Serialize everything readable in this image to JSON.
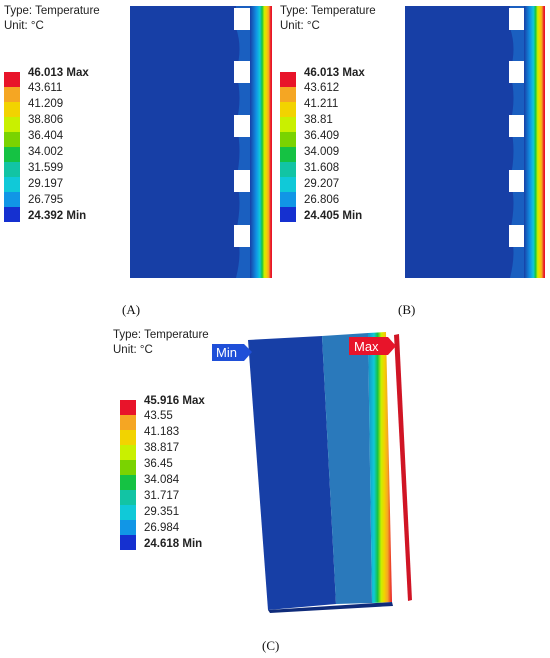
{
  "panels": [
    {
      "id": "A",
      "type_label": "Type: Temperature",
      "unit_label": "Unit: °C",
      "legend": [
        "46.013 Max",
        "43.611",
        "41.209",
        "38.806",
        "36.404",
        "34.002",
        "31.599",
        "29.197",
        "26.795",
        "24.392 Min"
      ],
      "caption": "(A)"
    },
    {
      "id": "B",
      "type_label": "Type: Temperature",
      "unit_label": "Unit: °C",
      "legend": [
        "46.013 Max",
        "43.612",
        "41.211",
        "38.81",
        "36.409",
        "34.009",
        "31.608",
        "29.207",
        "26.806",
        "24.405 Min"
      ],
      "caption": "(B)"
    },
    {
      "id": "C",
      "type_label": "Type: Temperature",
      "unit_label": "Unit: °C",
      "legend": [
        "45.916 Max",
        "43.55",
        "41.183",
        "38.817",
        "36.45",
        "34.084",
        "31.717",
        "29.351",
        "26.984",
        "24.618 Min"
      ],
      "caption": "(C)",
      "min_tag": "Min",
      "max_tag": "Max"
    }
  ],
  "colors": {
    "scale": [
      "#e8142a",
      "#f5a623",
      "#f2d300",
      "#c9f000",
      "#7ad300",
      "#15c243",
      "#12c4a4",
      "#10c9d8",
      "#1196e6",
      "#1530d0"
    ],
    "base_blue": "#173fa6",
    "max_tag": "#e8142a",
    "min_tag": "#1f4fd8"
  }
}
